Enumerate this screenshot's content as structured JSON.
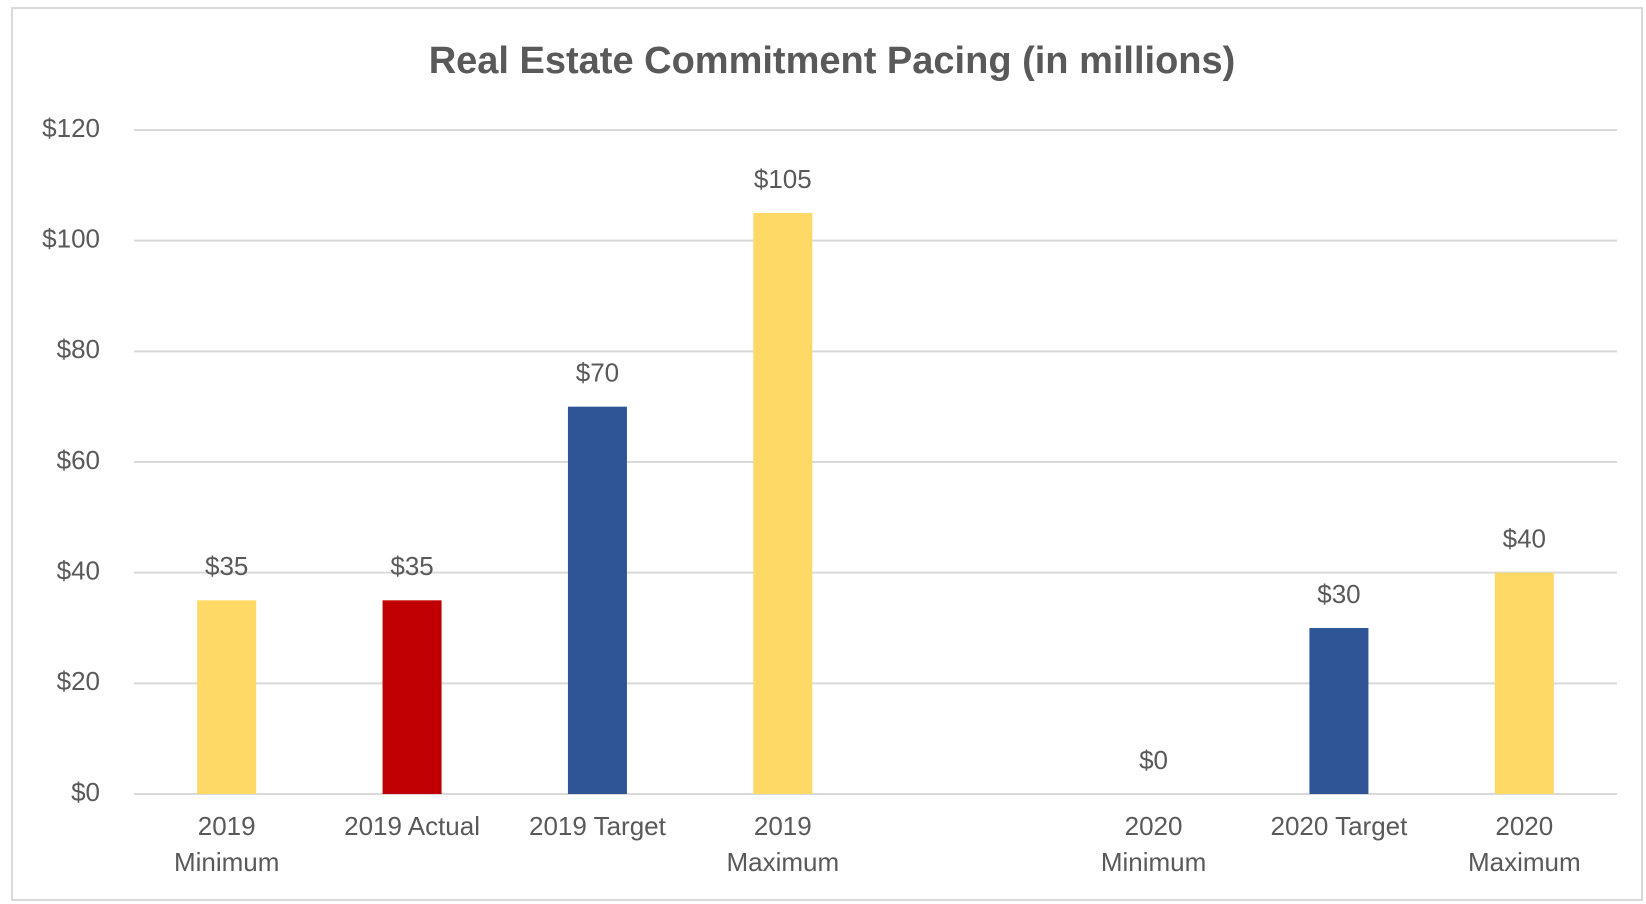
{
  "chart_data": {
    "type": "bar",
    "title": "Real Estate Commitment Pacing (in millions)",
    "categories": [
      "2019 Minimum",
      "2019 Actual",
      "2019 Target",
      "2019 Maximum",
      null,
      "2020 Minimum",
      "2020 Target",
      "2020 Maximum"
    ],
    "values": [
      35,
      35,
      70,
      105,
      null,
      0,
      30,
      40
    ],
    "value_labels": [
      "$35",
      "$35",
      "$70",
      "$105",
      null,
      "$0",
      "$30",
      "$40"
    ],
    "colors": [
      "#ffd966",
      "#c00000",
      "#2f5597",
      "#ffd966",
      null,
      "#ffd966",
      "#2f5597",
      "#ffd966"
    ],
    "ylim": [
      0,
      120
    ],
    "yticks": [
      {
        "value": 0,
        "label": "$0"
      },
      {
        "value": 20,
        "label": "$20"
      },
      {
        "value": 40,
        "label": "$40"
      },
      {
        "value": 60,
        "label": "$60"
      },
      {
        "value": 80,
        "label": "$80"
      },
      {
        "value": 100,
        "label": "$100"
      },
      {
        "value": 120,
        "label": "$120"
      }
    ],
    "grid": true
  }
}
